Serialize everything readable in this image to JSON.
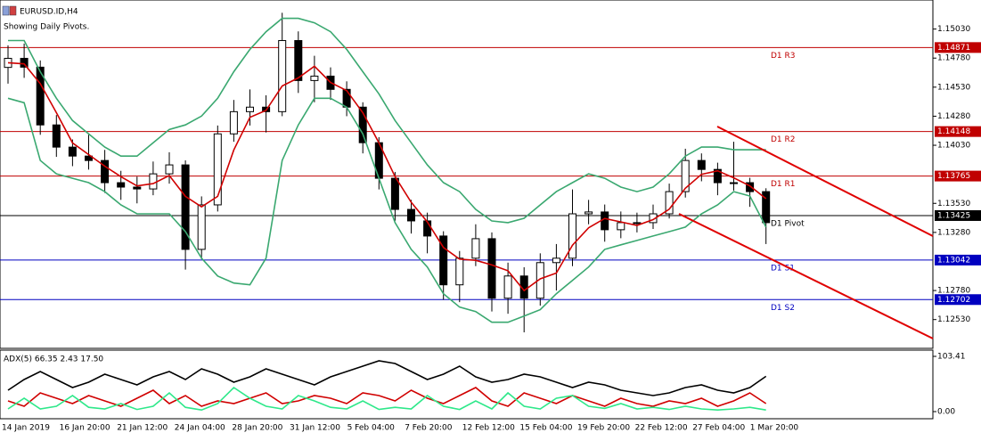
{
  "chart_data": [
    {
      "type": "candlestick",
      "title": "EURUSD.ID,H4",
      "subtitle": "Showing Daily Pivots.",
      "ylim": [
        1.1229,
        1.1528
      ],
      "yticks": [
        {
          "value": 1.1503,
          "label": "1.15030"
        },
        {
          "value": 1.1478,
          "label": "1.14780"
        },
        {
          "value": 1.1453,
          "label": "1.14530"
        },
        {
          "value": 1.1428,
          "label": "1.14280"
        },
        {
          "value": 1.1403,
          "label": "1.14030"
        },
        {
          "value": 1.1353,
          "label": "1.13530"
        },
        {
          "value": 1.1328,
          "label": "1.13280"
        },
        {
          "value": 1.1278,
          "label": "1.12780"
        },
        {
          "value": 1.1253,
          "label": "1.12530"
        }
      ],
      "open": [
        1.147,
        1.14778,
        1.14702,
        1.14205,
        1.14014,
        1.13937,
        1.13899,
        1.13708,
        1.1367,
        1.13654,
        1.13784,
        1.13861,
        1.13134,
        1.13517,
        1.14128,
        1.14319,
        1.14358,
        1.14319,
        1.14931,
        1.14587,
        1.14625,
        1.14511,
        1.14358,
        1.14052,
        1.13746,
        1.13478,
        1.13379,
        1.13249,
        1.12829,
        1.13058,
        1.13226,
        1.12714,
        1.12905,
        1.12714,
        1.1302,
        1.13058,
        1.1344,
        1.13456,
        1.13303,
        1.13364,
        1.13364,
        1.1344,
        1.13631,
        1.13899,
        1.13822,
        1.13708,
        1.13708,
        1.13631
      ],
      "high": [
        1.1489,
        1.14905,
        1.1476,
        1.1429,
        1.1408,
        1.1412,
        1.1399,
        1.1381,
        1.1376,
        1.1389,
        1.1397,
        1.139,
        1.1359,
        1.142,
        1.1442,
        1.1451,
        1.1446,
        1.1517,
        1.1501,
        1.148,
        1.147,
        1.1458,
        1.144,
        1.141,
        1.138,
        1.1356,
        1.1345,
        1.1329,
        1.1312,
        1.1335,
        1.1328,
        1.1302,
        1.1298,
        1.131,
        1.1318,
        1.1365,
        1.1356,
        1.1352,
        1.1346,
        1.1345,
        1.1352,
        1.137,
        1.14,
        1.1396,
        1.1388,
        1.1406,
        1.1375,
        1.1366
      ],
      "low": [
        1.1456,
        1.1461,
        1.1412,
        1.1393,
        1.1385,
        1.1382,
        1.1362,
        1.1356,
        1.1353,
        1.136,
        1.137,
        1.1296,
        1.1305,
        1.1346,
        1.1406,
        1.142,
        1.1414,
        1.1428,
        1.1448,
        1.144,
        1.1442,
        1.1428,
        1.1396,
        1.1365,
        1.1338,
        1.1327,
        1.131,
        1.127,
        1.1268,
        1.1299,
        1.126,
        1.1258,
        1.1242,
        1.1265,
        1.1278,
        1.1299,
        1.1335,
        1.132,
        1.1323,
        1.1328,
        1.1331,
        1.134,
        1.1358,
        1.1372,
        1.136,
        1.1364,
        1.135,
        1.1318
      ],
      "close": [
        1.14778,
        1.14702,
        1.14205,
        1.14014,
        1.13937,
        1.13899,
        1.13708,
        1.1367,
        1.13654,
        1.13784,
        1.13861,
        1.13134,
        1.13517,
        1.14128,
        1.14319,
        1.14358,
        1.14319,
        1.14931,
        1.14587,
        1.14625,
        1.14511,
        1.14358,
        1.14052,
        1.13746,
        1.13478,
        1.13379,
        1.13249,
        1.12829,
        1.13058,
        1.13226,
        1.12714,
        1.12905,
        1.12714,
        1.1302,
        1.13058,
        1.1344,
        1.13456,
        1.13303,
        1.13364,
        1.13364,
        1.1344,
        1.13631,
        1.13899,
        1.13822,
        1.13708,
        1.13708,
        1.13631,
        1.13364
      ],
      "series": [
        {
          "color": "#d00000",
          "values": [
            1.1474,
            1.1473,
            1.1456,
            1.1431,
            1.1405,
            1.1395,
            1.1385,
            1.1376,
            1.1368,
            1.137,
            1.1377,
            1.1359,
            1.135,
            1.1359,
            1.1399,
            1.1427,
            1.1433,
            1.1454,
            1.1461,
            1.1471,
            1.1457,
            1.145,
            1.1431,
            1.1405,
            1.1376,
            1.1354,
            1.1337,
            1.1315,
            1.1305,
            1.1304,
            1.13,
            1.1295,
            1.1278,
            1.1288,
            1.1293,
            1.1317,
            1.1332,
            1.134,
            1.1337,
            1.1334,
            1.1339,
            1.1348,
            1.1366,
            1.1378,
            1.1381,
            1.1375,
            1.1368,
            1.1357
          ]
        },
        {
          "color": "#3aa870",
          "values": [
            1.14931,
            1.14931,
            1.14663,
            1.14434,
            1.14243,
            1.14128,
            1.14014,
            1.13937,
            1.13937,
            1.14052,
            1.14166,
            1.14205,
            1.14281,
            1.14434,
            1.14663,
            1.14855,
            1.15007,
            1.15122,
            1.15122,
            1.15084,
            1.15007,
            1.14855,
            1.14663,
            1.14472,
            1.14243,
            1.14052,
            1.13861,
            1.13708,
            1.13631,
            1.13478,
            1.13379,
            1.13364,
            1.13402,
            1.13517,
            1.13631,
            1.13708,
            1.13784,
            1.13746,
            1.1367,
            1.13631,
            1.1367,
            1.13784,
            1.13937,
            1.14014,
            1.14014,
            1.13991,
            1.13991,
            1.13991
          ]
        },
        {
          "color": "#3aa870",
          "values": [
            1.14434,
            1.14396,
            1.13899,
            1.13784,
            1.13746,
            1.13708,
            1.13631,
            1.13517,
            1.1344,
            1.1344,
            1.1344,
            1.13287,
            1.13058,
            1.12905,
            1.12844,
            1.12829,
            1.13058,
            1.13899,
            1.14205,
            1.14434,
            1.14434,
            1.14358,
            1.14128,
            1.13746,
            1.13364,
            1.13134,
            1.12982,
            1.12752,
            1.12637,
            1.12599,
            1.12507,
            1.12507,
            1.12561,
            1.12615,
            1.12752,
            1.12867,
            1.12982,
            1.13134,
            1.13173,
            1.13211,
            1.13249,
            1.13287,
            1.13326,
            1.1344,
            1.13517,
            1.13631,
            1.13593,
            1.13326
          ]
        }
      ],
      "levels": [
        {
          "label": "D1 R3",
          "value": 1.14871,
          "color": "#c00000"
        },
        {
          "label": "D1 R2",
          "value": 1.14148,
          "color": "#c00000"
        },
        {
          "label": "D1 R1",
          "value": 1.13765,
          "color": "#c00000"
        },
        {
          "label": "D1 Pivot",
          "value": 1.13425,
          "color": "#000000"
        },
        {
          "label": "D1 S1",
          "value": 1.13042,
          "color": "#0000c0"
        },
        {
          "label": "D1 S2",
          "value": 1.12702,
          "color": "#0000c0"
        }
      ]
    },
    {
      "type": "line",
      "title": "ADX(5) 66.35 2.43 17.50",
      "ylim": [
        0,
        103.41
      ],
      "yticks": [
        {
          "value": 103.41,
          "label": "103.41"
        },
        {
          "value": 0,
          "label": "0.00"
        }
      ],
      "xticks": [
        "14 Jan 2019",
        "16 Jan 20:00",
        "21 Jan 12:00",
        "24 Jan 04:00",
        "28 Jan 20:00",
        "31 Jan 12:00",
        "5 Feb 04:00",
        "7 Feb 20:00",
        "12 Feb 12:00",
        "15 Feb 04:00",
        "19 Feb 20:00",
        "22 Feb 12:00",
        "27 Feb 04:00",
        "1 Mar 20:00"
      ],
      "series": [
        {
          "color": "#000000",
          "values": [
            40,
            60,
            75,
            60,
            45,
            55,
            70,
            60,
            50,
            65,
            75,
            60,
            80,
            70,
            55,
            65,
            80,
            70,
            60,
            50,
            65,
            75,
            85,
            95,
            90,
            75,
            60,
            70,
            85,
            65,
            55,
            60,
            70,
            65,
            55,
            45,
            55,
            50,
            40,
            35,
            30,
            35,
            45,
            50,
            40,
            35,
            45,
            66
          ]
        },
        {
          "color": "#d00000",
          "values": [
            20,
            10,
            35,
            25,
            15,
            30,
            20,
            10,
            25,
            40,
            15,
            30,
            10,
            20,
            15,
            25,
            35,
            15,
            20,
            30,
            25,
            15,
            35,
            30,
            20,
            40,
            25,
            15,
            30,
            45,
            20,
            10,
            35,
            25,
            15,
            30,
            20,
            10,
            25,
            15,
            10,
            20,
            15,
            25,
            10,
            20,
            35,
            15
          ]
        },
        {
          "color": "#2ee88a",
          "values": [
            5,
            25,
            5,
            10,
            30,
            8,
            5,
            15,
            4,
            10,
            35,
            8,
            3,
            15,
            45,
            25,
            10,
            5,
            30,
            20,
            8,
            5,
            20,
            4,
            8,
            5,
            30,
            10,
            4,
            20,
            5,
            35,
            10,
            5,
            25,
            30,
            10,
            6,
            15,
            5,
            8,
            4,
            10,
            5,
            3,
            5,
            8,
            3
          ]
        }
      ]
    }
  ]
}
